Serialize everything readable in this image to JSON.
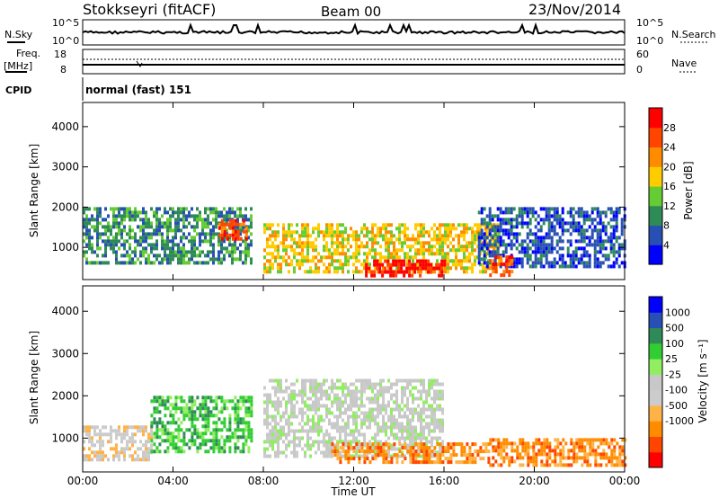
{
  "header": {
    "station": "Stokkseyri (fitACF)",
    "beam": "Beam 00",
    "date": "23/Nov/2014"
  },
  "aux_panels": {
    "nsky": {
      "label": "N.Sky",
      "ticks": [
        "10^5",
        "10^0"
      ]
    },
    "nsearch": {
      "label": "N.Search",
      "ticks": [
        "10^5",
        "10^0"
      ]
    },
    "freq": {
      "label_line1": "Freq.",
      "label_line2": "[MHz]",
      "ticks": [
        "18",
        "8"
      ]
    },
    "nave": {
      "label": "Nave",
      "ticks": [
        "60",
        "0"
      ]
    },
    "cpid": {
      "label": "CPID",
      "value": "normal (fast) 151"
    }
  },
  "colors": {
    "power_scale": [
      "#0000ff",
      "#2850b4",
      "#2e8b57",
      "#66cc33",
      "#ffcc00",
      "#ff8c00",
      "#ff4500",
      "#ff0000"
    ],
    "velocity_scale": [
      "#ff0000",
      "#ff4500",
      "#ff8c00",
      "#ffb347",
      "#cccccc",
      "#c8c8c8",
      "#90ee60",
      "#32cd32",
      "#2e8b57",
      "#2850b4",
      "#0000ff"
    ]
  },
  "chart_data": [
    {
      "type": "heatmap",
      "ylabel": "Slant Range [km]",
      "xlabel": "Time UT",
      "x_ticks": [
        "00:00",
        "04:00",
        "08:00",
        "12:00",
        "16:00",
        "20:00",
        "00:00"
      ],
      "y_ticks": [
        "1000",
        "2000",
        "3000",
        "4000"
      ],
      "ylim": [
        200,
        4600
      ],
      "xlim_hours": [
        0,
        24
      ],
      "colorbar": {
        "label": "Power [dB]",
        "ticks": [
          "4",
          "8",
          "12",
          "16",
          "20",
          "24",
          "28"
        ]
      },
      "regions": [
        {
          "t0": 0.0,
          "t1": 7.5,
          "r0": 600,
          "r1": 2000,
          "level": 2
        },
        {
          "t0": 6.0,
          "t1": 7.3,
          "r0": 1200,
          "r1": 1700,
          "level": 6
        },
        {
          "t0": 8.0,
          "t1": 18.5,
          "r0": 400,
          "r1": 1600,
          "level": 4
        },
        {
          "t0": 12.5,
          "t1": 16.0,
          "r0": 300,
          "r1": 700,
          "level": 7
        },
        {
          "t0": 17.5,
          "t1": 24.0,
          "r0": 500,
          "r1": 2000,
          "level": 1
        },
        {
          "t0": 18.0,
          "t1": 19.0,
          "r0": 300,
          "r1": 800,
          "level": 6
        }
      ]
    },
    {
      "type": "heatmap",
      "ylabel": "Slant Range [km]",
      "xlabel": "Time UT",
      "x_ticks": [
        "00:00",
        "04:00",
        "08:00",
        "12:00",
        "16:00",
        "20:00",
        "00:00"
      ],
      "y_ticks": [
        "1000",
        "2000",
        "3000",
        "4000"
      ],
      "ylim": [
        200,
        4600
      ],
      "xlim_hours": [
        0,
        24
      ],
      "colorbar": {
        "label": "Velocity [m s⁻¹]",
        "ticks": [
          "1000",
          "500",
          "100",
          "25",
          "-25",
          "-100",
          "-500",
          "-1000"
        ]
      },
      "regions": [
        {
          "t0": 0.0,
          "t1": 3.0,
          "r0": 500,
          "r1": 1300,
          "level": 4
        },
        {
          "t0": 3.0,
          "t1": 7.5,
          "r0": 700,
          "r1": 2000,
          "level": 7
        },
        {
          "t0": 8.0,
          "t1": 16.0,
          "r0": 600,
          "r1": 2400,
          "level": 5
        },
        {
          "t0": 11.0,
          "t1": 18.0,
          "r0": 400,
          "r1": 900,
          "level": 2
        },
        {
          "t0": 18.0,
          "t1": 24.0,
          "r0": 400,
          "r1": 1000,
          "level": 2
        }
      ]
    }
  ]
}
